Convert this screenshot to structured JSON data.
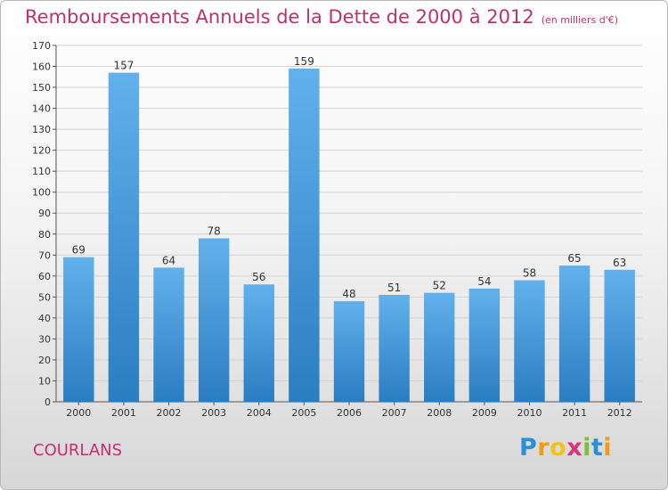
{
  "title": "Remboursements Annuels de la Dette de 2000 à 2012",
  "unit_note": "(en milliers d'€)",
  "commune": "COURLANS",
  "logo": {
    "text": "Proxiti",
    "letters": [
      {
        "char": "P",
        "color": "#2a8fd6"
      },
      {
        "char": "r",
        "color": "#f39a1d"
      },
      {
        "char": "o",
        "color": "#f0c419"
      },
      {
        "char": "x",
        "color": "#d9347b"
      },
      {
        "char": "i",
        "color": "#7bbf3a"
      },
      {
        "char": "t",
        "color": "#2a8fd6"
      },
      {
        "char": "i",
        "color": "#f39a1d"
      }
    ]
  },
  "colors": {
    "title": "#c0306a",
    "bar_top": "#62b1ec",
    "bar_bottom": "#2b7dc2",
    "grid": "#d2d2d2"
  },
  "chart_data": {
    "type": "bar",
    "categories": [
      "2000",
      "2001",
      "2002",
      "2003",
      "2004",
      "2005",
      "2006",
      "2007",
      "2008",
      "2009",
      "2010",
      "2011",
      "2012"
    ],
    "values": [
      69,
      157,
      64,
      78,
      56,
      159,
      48,
      51,
      52,
      54,
      58,
      65,
      63
    ],
    "ylim": [
      0,
      170
    ],
    "ytick_step": 10,
    "grid": true,
    "data_labels": true
  }
}
